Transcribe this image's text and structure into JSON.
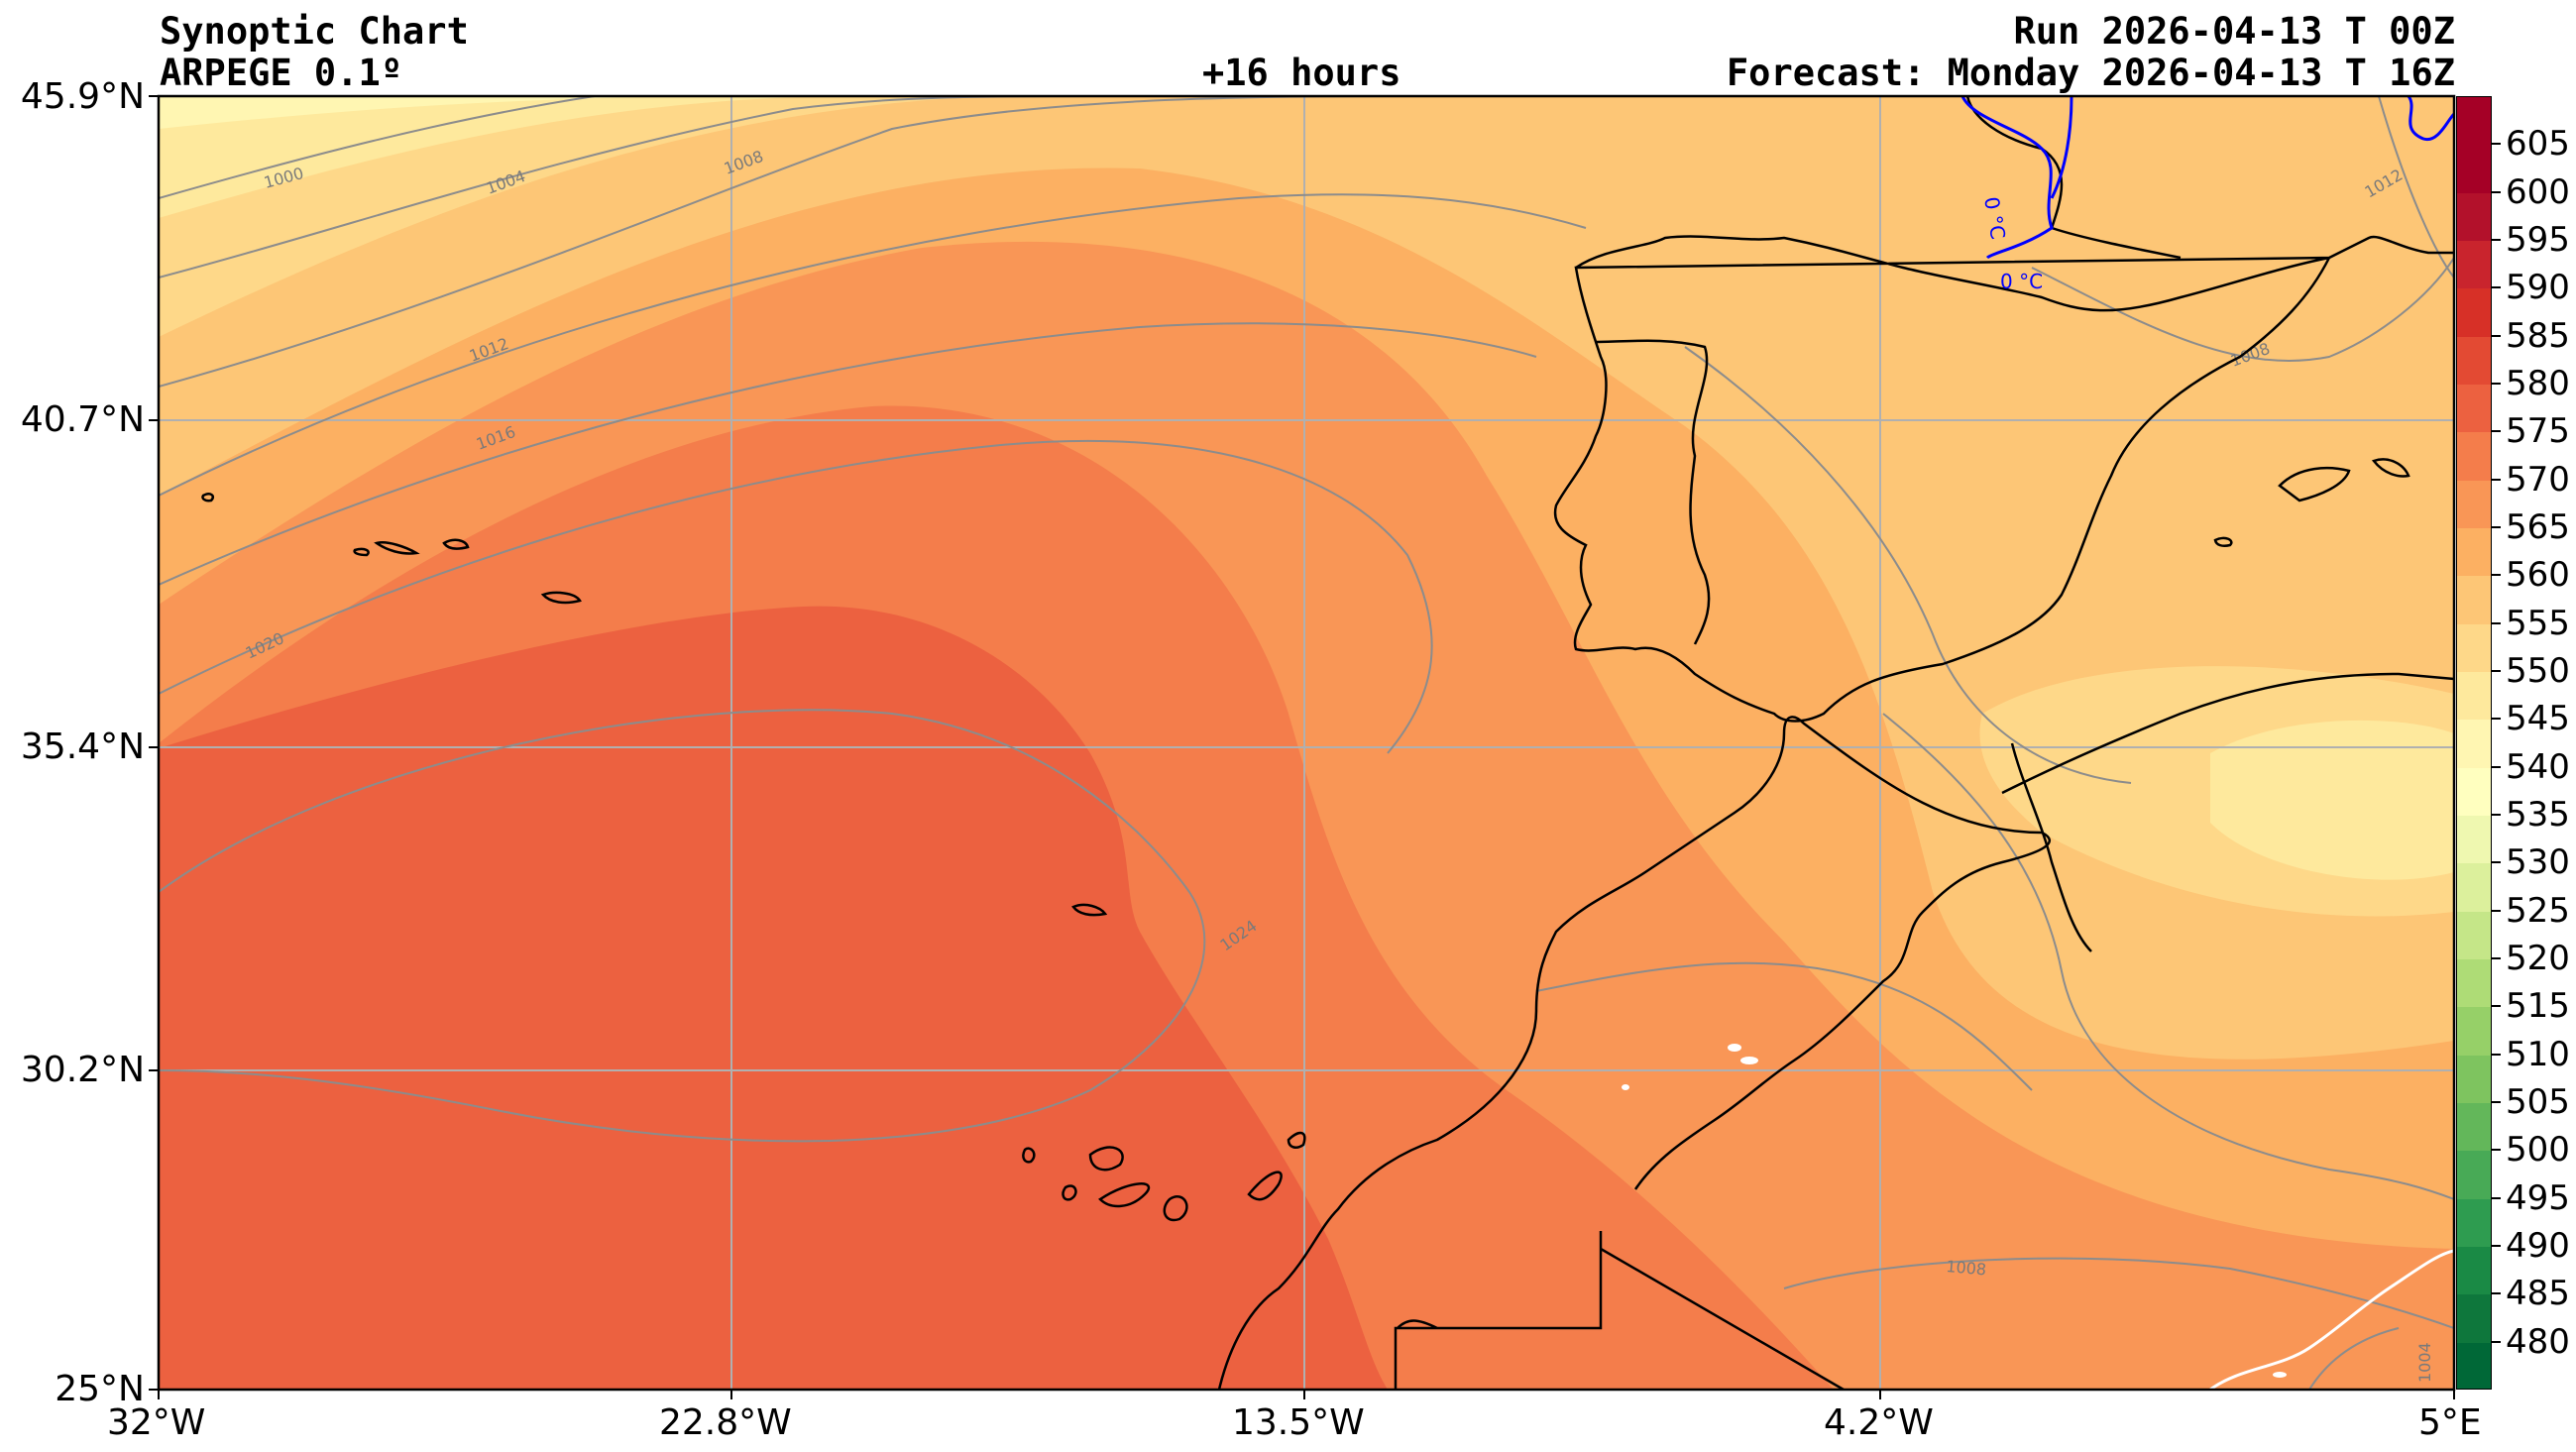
{
  "header": {
    "title": "Synoptic Chart",
    "model": "ARPEGE 0.1º",
    "lead_time": "+16 hours",
    "run": "Run 2026-04-13 T 00Z",
    "forecast": "Forecast: Monday 2026-04-13 T 16Z"
  },
  "axes": {
    "lat_labels": [
      "45.9°N",
      "40.7°N",
      "35.4°N",
      "30.2°N",
      "25°N"
    ],
    "lon_labels": [
      "32°W",
      "22.8°W",
      "13.5°W",
      "4.2°W",
      "5°E"
    ]
  },
  "map": {
    "isobar_labels": [
      "1000",
      "1004",
      "1008",
      "1012",
      "1016",
      "1020",
      "1024",
      "1008",
      "1012",
      "1008",
      "1004"
    ],
    "freezing_labels": [
      "0 °C",
      "0 °C"
    ],
    "colors": {
      "ocean_west": "#ec6140",
      "band_580": "#f47d4b",
      "band_575": "#f99656",
      "band_570": "#fcb062",
      "band_565": "#fdc676",
      "band_560": "#fed889",
      "band_555": "#fee99d",
      "band_550": "#fff6b2",
      "isobar": "#8c8c8c",
      "coast": "#000000",
      "freezing": "#0000ff",
      "grid": "#b0b0b0"
    }
  },
  "colorbar": {
    "labels": [
      "605",
      "600",
      "595",
      "590",
      "585",
      "580",
      "575",
      "570",
      "565",
      "560",
      "555",
      "550",
      "545",
      "540",
      "535",
      "530",
      "525",
      "520",
      "515",
      "510",
      "505",
      "500",
      "495",
      "490",
      "485",
      "480"
    ],
    "colors": [
      "#a50026",
      "#b3112b",
      "#c9242d",
      "#d73027",
      "#e34a33",
      "#ec6140",
      "#f47d4b",
      "#f99656",
      "#fcb062",
      "#fdc676",
      "#fed889",
      "#fee99d",
      "#fff6b2",
      "#ffffbf",
      "#eff8b0",
      "#dcf09c",
      "#c5e688",
      "#aedc76",
      "#96d068",
      "#7ec45f",
      "#63b75a",
      "#48aa56",
      "#2e9c50",
      "#1a8a45",
      "#0e773c",
      "#006837"
    ]
  }
}
